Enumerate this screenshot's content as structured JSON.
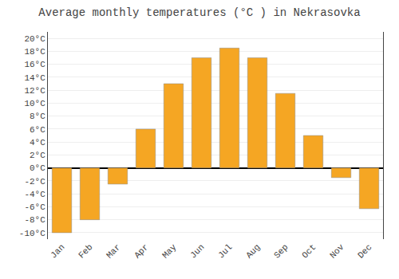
{
  "chart_data": {
    "type": "bar",
    "title": "Average monthly temperatures (°C ) in Nekrasovka",
    "categories": [
      "Jan",
      "Feb",
      "Mar",
      "Apr",
      "May",
      "Jun",
      "Jul",
      "Aug",
      "Sep",
      "Oct",
      "Nov",
      "Dec"
    ],
    "values": [
      -10,
      -8,
      -2.5,
      6,
      13,
      17,
      18.5,
      17,
      11.5,
      5,
      -1.5,
      -6.3
    ],
    "color": "#F5A623",
    "ylim": [
      -11,
      21
    ],
    "yticks": [
      {
        "value": -10,
        "label": "-10°C"
      },
      {
        "value": -8,
        "label": "-8°C"
      },
      {
        "value": -6,
        "label": "-6°C"
      },
      {
        "value": -4,
        "label": "-4°C"
      },
      {
        "value": -2,
        "label": "-2°C"
      },
      {
        "value": 0,
        "label": "0°C"
      },
      {
        "value": 2,
        "label": "2°C"
      },
      {
        "value": 4,
        "label": "4°C"
      },
      {
        "value": 6,
        "label": "6°C"
      },
      {
        "value": 8,
        "label": "8°C"
      },
      {
        "value": 10,
        "label": "10°C"
      },
      {
        "value": 12,
        "label": "12°C"
      },
      {
        "value": 14,
        "label": "14°C"
      },
      {
        "value": 16,
        "label": "16°C"
      },
      {
        "value": 18,
        "label": "18°C"
      },
      {
        "value": 20,
        "label": "20°C"
      }
    ],
    "grid": true
  }
}
